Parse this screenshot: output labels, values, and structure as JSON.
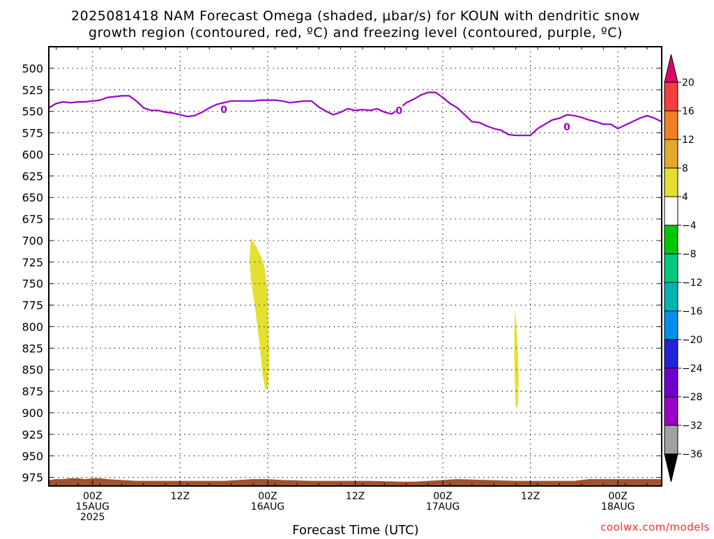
{
  "chart_data": {
    "type": "heatmap",
    "title_lines": [
      "2025081418 NAM Forecast Omega (shaded, μbar/s) for KOUN with dendritic snow",
      "growth region (contoured, red, ºC) and freezing level (contoured, purple, ºC)"
    ],
    "xlabel": "Forecast Time (UTC)",
    "credit": "coolwx.com/models",
    "y_axis": {
      "units": "hPa",
      "inverted": true,
      "range": [
        475,
        985
      ],
      "ticks": [
        500,
        525,
        550,
        575,
        600,
        625,
        650,
        675,
        700,
        725,
        750,
        775,
        800,
        825,
        850,
        875,
        900,
        925,
        950,
        975
      ],
      "tick_labels": [
        "500",
        "525",
        "550",
        "575",
        "600",
        "625",
        "650",
        "675",
        "700",
        "725",
        "750",
        "775",
        "800",
        "825",
        "850",
        "875",
        "900",
        "925",
        "950",
        "975"
      ]
    },
    "x_axis": {
      "units": "hours since 2025-08-14 18Z",
      "range": [
        0,
        84
      ],
      "ticks": [
        6,
        18,
        30,
        42,
        54,
        66,
        78
      ],
      "tick_labels": [
        [
          "00Z",
          "15AUG",
          "2025"
        ],
        [
          "12Z"
        ],
        [
          "00Z",
          "16AUG"
        ],
        [
          "12Z"
        ],
        [
          "00Z",
          "17AUG"
        ],
        [
          "12Z"
        ],
        [
          "00Z",
          "18AUG"
        ]
      ]
    },
    "grid": true,
    "freezing_level": {
      "label": "0",
      "color": "#9a00c8",
      "x": [
        0,
        1,
        2,
        3,
        4,
        5,
        6,
        7,
        8,
        9,
        10,
        11,
        12,
        13,
        14,
        15,
        16,
        17,
        18,
        19,
        20,
        21,
        22,
        23,
        24,
        25,
        26,
        27,
        28,
        29,
        30,
        31,
        32,
        33,
        34,
        35,
        36,
        37,
        38,
        39,
        40,
        41,
        42,
        43,
        44,
        45,
        46,
        47,
        48,
        49,
        50,
        51,
        52,
        53,
        54,
        55,
        56,
        57,
        58,
        59,
        60,
        61,
        62,
        63,
        64,
        65,
        66,
        67,
        68,
        69,
        70,
        71,
        72,
        73,
        74,
        75,
        76,
        77,
        78,
        79,
        80,
        81,
        82,
        83,
        84
      ],
      "pressure": [
        546,
        541,
        539,
        540,
        539,
        539,
        538,
        537,
        534,
        533,
        532,
        532,
        538,
        546,
        549,
        549,
        551,
        552,
        554,
        556,
        555,
        551,
        546,
        542,
        540,
        538,
        538,
        538,
        538,
        537,
        537,
        537,
        538,
        540,
        539,
        538,
        538,
        545,
        550,
        554,
        551,
        547,
        549,
        548,
        549,
        547,
        551,
        553,
        547,
        540,
        536,
        531,
        528,
        528,
        534,
        541,
        546,
        554,
        562,
        563,
        567,
        570,
        572,
        577,
        578,
        578,
        578,
        570,
        565,
        560,
        558,
        554,
        555,
        557,
        560,
        562,
        565,
        565,
        570,
        566,
        562,
        558,
        555,
        558,
        562
      ],
      "contour_labels": [
        {
          "x": 24,
          "p": 548
        },
        {
          "x": 48,
          "p": 549
        },
        {
          "x": 71,
          "p": 568
        }
      ]
    },
    "omega_regions": [
      {
        "color": "#e4e030",
        "outline": [
          [
            27.7,
            697
          ],
          [
            28.3,
            705
          ],
          [
            29.1,
            718
          ],
          [
            29.6,
            732
          ],
          [
            30.0,
            760
          ],
          [
            30.1,
            800
          ],
          [
            30.2,
            840
          ],
          [
            30.1,
            870
          ],
          [
            29.7,
            875
          ],
          [
            29.3,
            855
          ],
          [
            28.9,
            820
          ],
          [
            28.3,
            780
          ],
          [
            27.7,
            745
          ],
          [
            27.5,
            720
          ]
        ]
      },
      {
        "color": "#e4e030",
        "outline": [
          [
            63.9,
            780
          ],
          [
            64.1,
            800
          ],
          [
            64.3,
            830
          ],
          [
            64.4,
            860
          ],
          [
            64.3,
            890
          ],
          [
            64.0,
            895
          ],
          [
            63.9,
            870
          ],
          [
            63.8,
            840
          ],
          [
            63.8,
            810
          ]
        ]
      }
    ],
    "terrain": {
      "color": "#a0522d",
      "bottom": 985,
      "x": [
        0,
        1,
        2,
        3,
        4,
        5,
        6,
        7,
        8,
        10,
        12,
        16,
        20,
        24,
        26,
        28,
        30,
        32,
        36,
        40,
        44,
        48,
        50,
        52,
        54,
        56,
        60,
        64,
        68,
        72,
        74,
        76,
        80,
        84
      ],
      "pressure": [
        978,
        977,
        977,
        976,
        976,
        977,
        976,
        976,
        977,
        978,
        979,
        979,
        979,
        979,
        978,
        977,
        977,
        978,
        979,
        979,
        979,
        980,
        980,
        979,
        978,
        977,
        978,
        979,
        979,
        979,
        977,
        977,
        977,
        977
      ]
    },
    "colorbar": {
      "colors": [
        "#000000",
        "#a0a0a0",
        "#9a00c8",
        "#7000d0",
        "#2222d8",
        "#0090ec",
        "#00b4b4",
        "#00c880",
        "#00c800",
        "#ffffff",
        "#e4e030",
        "#e4a830",
        "#f08020",
        "#f04040",
        "#e0006c"
      ],
      "labels": [
        "20",
        "16",
        "12",
        "8",
        "4",
        "−4",
        "−8",
        "−12",
        "−16",
        "−20",
        "−24",
        "−28",
        "−32",
        "−36"
      ]
    }
  }
}
